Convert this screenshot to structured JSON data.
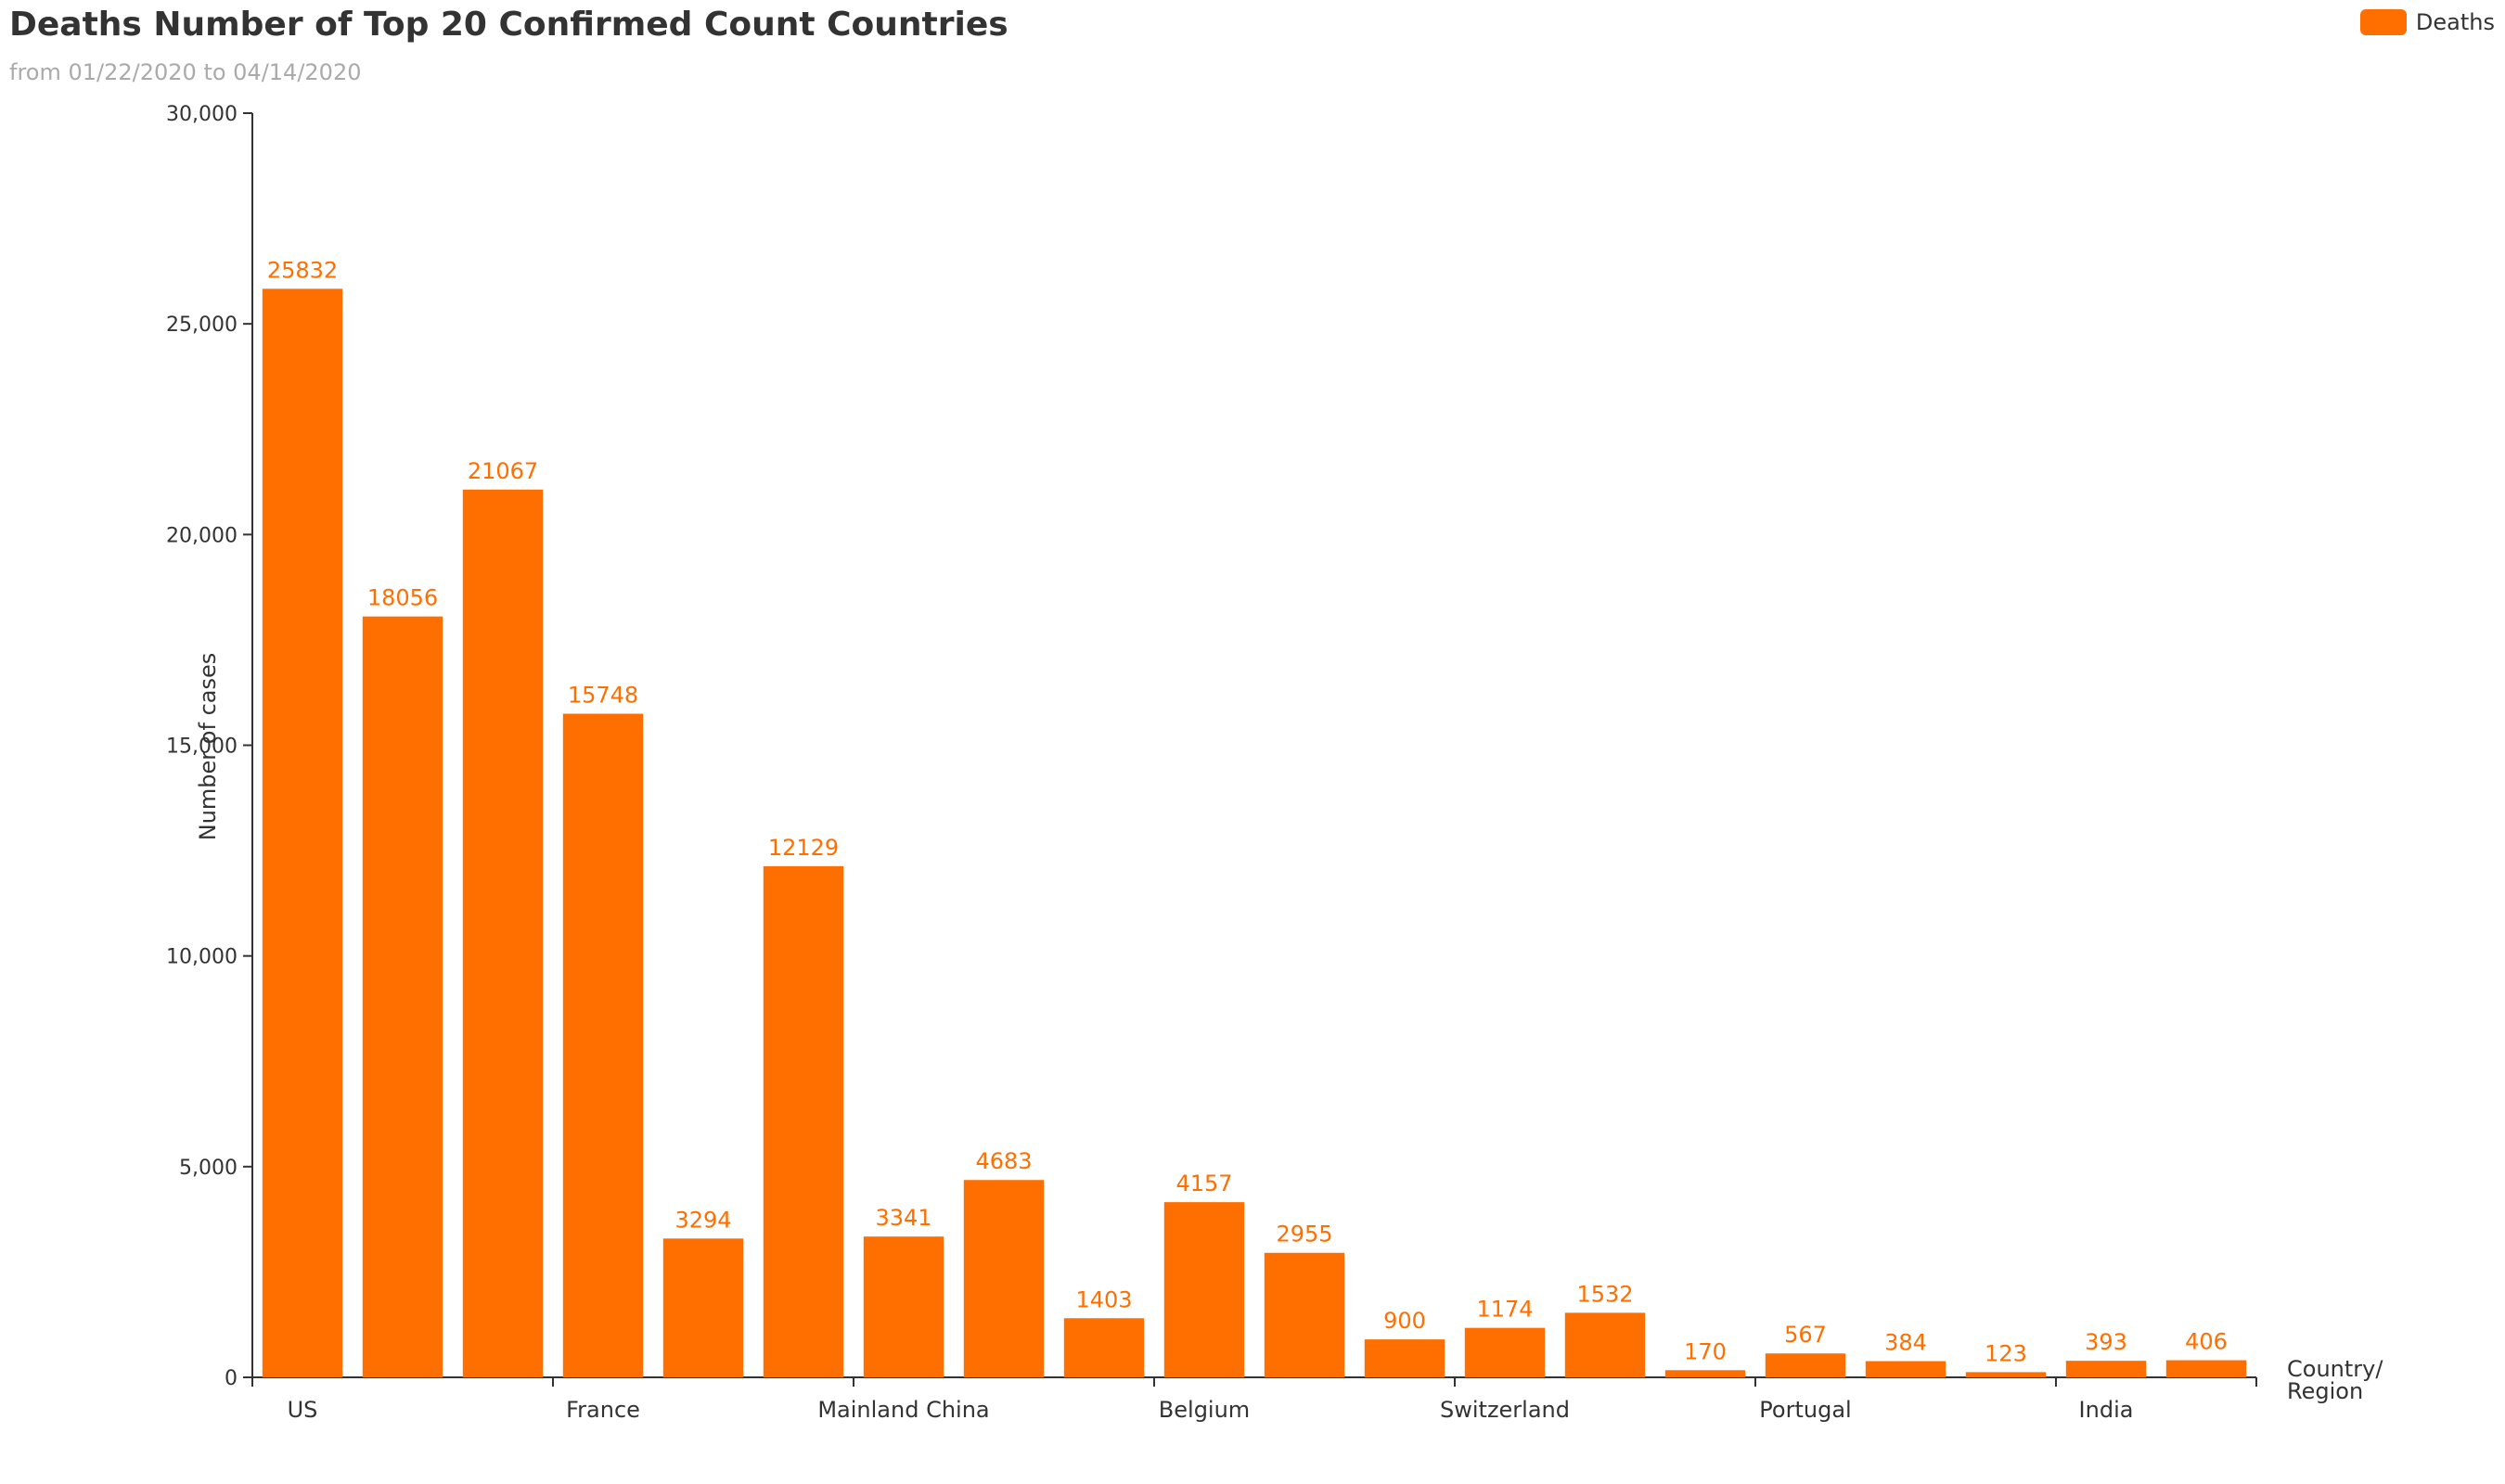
{
  "chart_data": {
    "type": "bar",
    "title": "Deaths Number of Top 20 Confirmed Count Countries",
    "subtitle": "from 01/22/2020 to 04/14/2020",
    "xlabel_lines": [
      "Country/",
      "Region"
    ],
    "ylabel": "Number of cases",
    "ylim": [
      0,
      30000
    ],
    "yticks": [
      0,
      5000,
      10000,
      15000,
      20000,
      25000,
      30000
    ],
    "ytick_labels": [
      "0",
      "5,000",
      "10,000",
      "15,000",
      "20,000",
      "25,000",
      "30,000"
    ],
    "categories": [
      "US",
      "",
      "",
      "France",
      "",
      "",
      "Mainland China",
      "",
      "",
      "Belgium",
      "",
      "",
      "Switzerland",
      "",
      "",
      "Portugal",
      "",
      "",
      "India",
      ""
    ],
    "series": [
      {
        "name": "Deaths",
        "color": "#ff6f00",
        "values": [
          25832,
          18056,
          21067,
          15748,
          3294,
          12129,
          3341,
          4683,
          1403,
          4157,
          2955,
          900,
          1174,
          1532,
          170,
          567,
          384,
          123,
          393,
          406
        ]
      }
    ],
    "grid": false,
    "legend_position": "top-right"
  }
}
